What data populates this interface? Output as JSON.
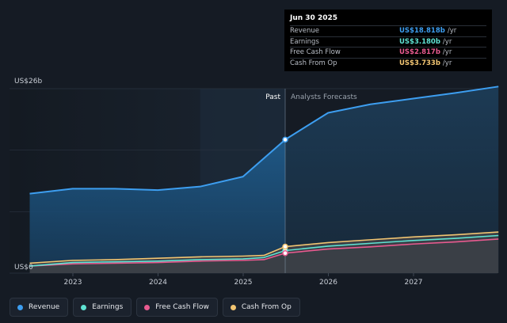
{
  "chart_data": {
    "type": "area",
    "y_axis": {
      "top_label": "US$26b",
      "bottom_label": "US$0",
      "ylim": [
        0,
        26
      ]
    },
    "x_ticks": [
      "2023",
      "2024",
      "2025",
      "2026",
      "2027"
    ],
    "region_labels": {
      "past": "Past",
      "forecast": "Analysts Forecasts"
    },
    "divider_date": "2025-06-30",
    "series": [
      {
        "name": "Revenue",
        "color": "#3d9ef0",
        "points": [
          [
            "2022-06-30",
            11.2
          ],
          [
            "2022-12-31",
            11.9
          ],
          [
            "2023-06-30",
            11.9
          ],
          [
            "2023-12-31",
            11.7
          ],
          [
            "2024-06-30",
            12.2
          ],
          [
            "2024-12-31",
            13.6
          ],
          [
            "2025-03-31",
            16.2
          ],
          [
            "2025-06-30",
            18.818
          ],
          [
            "2025-12-31",
            22.6
          ],
          [
            "2026-06-30",
            23.8
          ],
          [
            "2026-12-31",
            24.6
          ],
          [
            "2027-06-30",
            25.4
          ],
          [
            "2027-12-31",
            26.3
          ]
        ]
      },
      {
        "name": "Earnings",
        "color": "#5fe3d3",
        "points": [
          [
            "2022-06-30",
            1.0
          ],
          [
            "2022-12-31",
            1.5
          ],
          [
            "2023-06-30",
            1.6
          ],
          [
            "2023-12-31",
            1.7
          ],
          [
            "2024-06-30",
            1.9
          ],
          [
            "2024-12-31",
            2.0
          ],
          [
            "2025-03-31",
            2.2
          ],
          [
            "2025-06-30",
            3.18
          ],
          [
            "2025-12-31",
            3.8
          ],
          [
            "2026-06-30",
            4.2
          ],
          [
            "2026-12-31",
            4.6
          ],
          [
            "2027-06-30",
            4.9
          ],
          [
            "2027-12-31",
            5.3
          ]
        ]
      },
      {
        "name": "Free Cash Flow",
        "color": "#e85a8f",
        "points": [
          [
            "2022-06-30",
            1.0
          ],
          [
            "2022-12-31",
            1.3
          ],
          [
            "2023-06-30",
            1.4
          ],
          [
            "2023-12-31",
            1.5
          ],
          [
            "2024-06-30",
            1.7
          ],
          [
            "2024-12-31",
            1.8
          ],
          [
            "2025-03-31",
            1.9
          ],
          [
            "2025-06-30",
            2.817
          ],
          [
            "2025-12-31",
            3.4
          ],
          [
            "2026-06-30",
            3.7
          ],
          [
            "2026-12-31",
            4.1
          ],
          [
            "2027-06-30",
            4.4
          ],
          [
            "2027-12-31",
            4.8
          ]
        ]
      },
      {
        "name": "Cash From Op",
        "color": "#f2c572",
        "points": [
          [
            "2022-06-30",
            1.4
          ],
          [
            "2022-12-31",
            1.8
          ],
          [
            "2023-06-30",
            1.9
          ],
          [
            "2023-12-31",
            2.1
          ],
          [
            "2024-06-30",
            2.3
          ],
          [
            "2024-12-31",
            2.4
          ],
          [
            "2025-03-31",
            2.5
          ],
          [
            "2025-06-30",
            3.733
          ],
          [
            "2025-12-31",
            4.3
          ],
          [
            "2026-06-30",
            4.7
          ],
          [
            "2026-12-31",
            5.1
          ],
          [
            "2027-06-30",
            5.4
          ],
          [
            "2027-12-31",
            5.8
          ]
        ]
      }
    ],
    "tooltip": {
      "date": "Jun 30 2025",
      "rows": [
        {
          "name": "Revenue",
          "value": "US$18.818b",
          "unit": "/yr",
          "color": "#3d9ef0"
        },
        {
          "name": "Earnings",
          "value": "US$3.180b",
          "unit": "/yr",
          "color": "#5fe3d3"
        },
        {
          "name": "Free Cash Flow",
          "value": "US$2.817b",
          "unit": "/yr",
          "color": "#e85a8f"
        },
        {
          "name": "Cash From Op",
          "value": "US$3.733b",
          "unit": "/yr",
          "color": "#f2c572"
        }
      ]
    },
    "legend": [
      {
        "label": "Revenue",
        "color": "#3d9ef0"
      },
      {
        "label": "Earnings",
        "color": "#5fe3d3"
      },
      {
        "label": "Free Cash Flow",
        "color": "#e85a8f"
      },
      {
        "label": "Cash From Op",
        "color": "#f2c572"
      }
    ],
    "grid": true,
    "legend_position": "bottom-left"
  }
}
